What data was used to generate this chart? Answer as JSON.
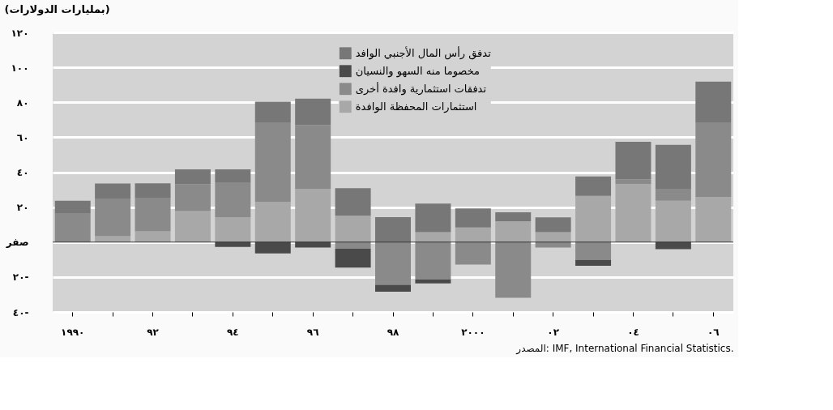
{
  "chart_data": {
    "type": "bar",
    "stacked": true,
    "ylabel": "(بمليارات الدولارات)",
    "annotations": [
      "المصدر: IMF, International Financial Statistics."
    ],
    "categories": [
      "١٩٩٠",
      null,
      "٩٢",
      null,
      "٩٤",
      null,
      "٩٦",
      null,
      "٩٨",
      null,
      "٢٠٠٠",
      null,
      "٠٢",
      null,
      "٠٤",
      null,
      "٠٦"
    ],
    "series": [
      {
        "name": "استثمارات المحفظة الوافدة",
        "color": "#a8a8a8",
        "values": [
          null,
          3.4,
          6.2,
          17.7,
          14.2,
          23.1,
          30.5,
          15.1,
          null,
          5.7,
          8.4,
          11.9,
          5.7,
          26.4,
          33.2,
          23.6,
          25.9
        ]
      },
      {
        "name": "تدفقات استثمارية وافدة أخرى",
        "color": "#8a8a8a",
        "values": [
          16.2,
          21.2,
          18.9,
          15.4,
          19.7,
          45.4,
          36.5,
          -3.8,
          -24.5,
          -21.4,
          -12.9,
          -31.9,
          -3.1,
          -10.2,
          2.8,
          6.5,
          42.6
        ]
      },
      {
        "name": "مخصوما منه السهو والنسيان",
        "color": "#4a4a4a",
        "values": [
          null,
          null,
          null,
          null,
          -2.8,
          -6.5,
          -3.1,
          -10.8,
          -3.9,
          -2.3,
          null,
          null,
          null,
          -3.4,
          null,
          -4.0,
          null
        ]
      },
      {
        "name": "تدفق رأس المال الأجنبي الوافد",
        "color": "#777777",
        "values": [
          7.4,
          8.9,
          8.5,
          8.5,
          7.7,
          11.8,
          15.1,
          15.7,
          14.3,
          16.3,
          10.9,
          5.1,
          8.5,
          11.2,
          21.4,
          25.6,
          23.3
        ]
      }
    ],
    "ylim": [
      -40,
      120
    ],
    "yticks": [
      {
        "value": -40,
        "label": "٤٠-"
      },
      {
        "value": -20,
        "label": "٢٠-"
      },
      {
        "value": 0,
        "label": "صفر"
      },
      {
        "value": 20,
        "label": "٢٠"
      },
      {
        "value": 40,
        "label": "٤٠"
      },
      {
        "value": 60,
        "label": "٦٠"
      },
      {
        "value": 80,
        "label": "٨٠"
      },
      {
        "value": 100,
        "label": "١٠٠"
      },
      {
        "value": 120,
        "label": "١٢٠"
      }
    ],
    "grid": "y",
    "legend": "top right"
  }
}
